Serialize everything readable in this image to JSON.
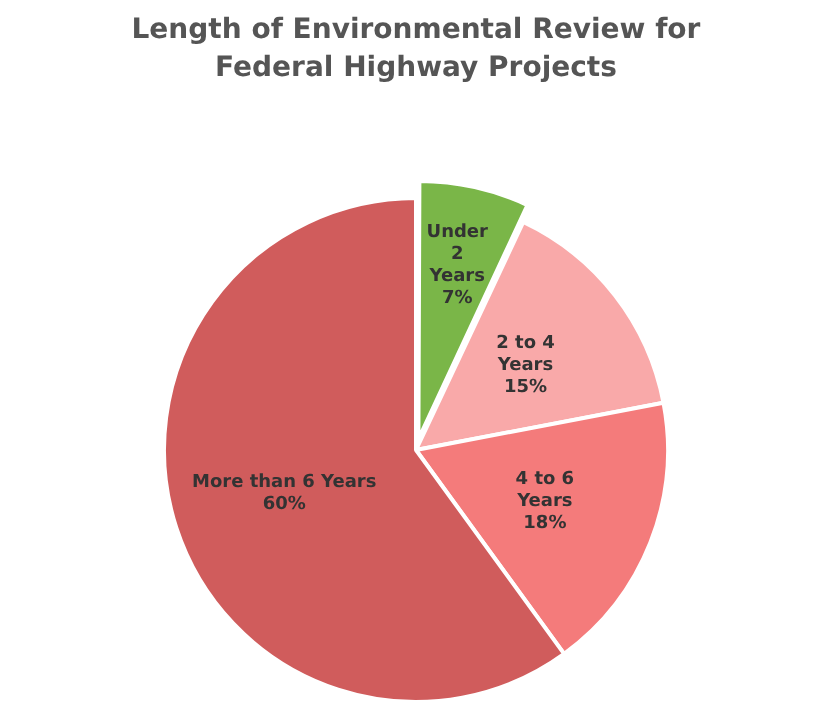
{
  "chart_data": {
    "type": "pie",
    "title": "Length of Environmental Review for Federal Highway Projects",
    "categories": [
      "Under 2 Years",
      "2 to 4 Years",
      "4 to 6 Years",
      "More than 6 Years"
    ],
    "values": [
      7,
      15,
      18,
      60
    ],
    "colors": [
      "#7ab648",
      "#f9a9a9",
      "#f47b7b",
      "#d05c5c"
    ],
    "value_labels": [
      "7%",
      "15%",
      "18%",
      "60%"
    ],
    "legend": false
  }
}
